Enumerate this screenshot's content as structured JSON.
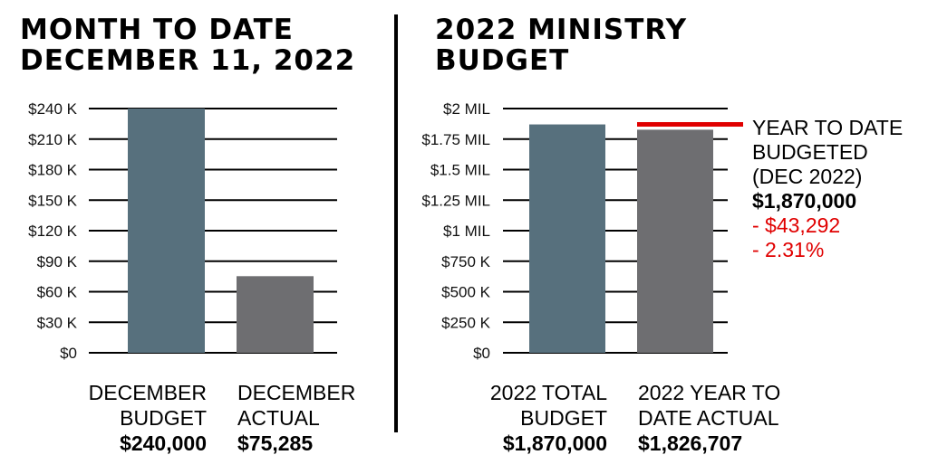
{
  "left_panel": {
    "title_line1": "MONTH TO DATE",
    "title_line2": "DECEMBER 11, 2022"
  },
  "right_panel": {
    "title_line1": "2022 MINISTRY",
    "title_line2": "BUDGET"
  },
  "annotation": {
    "line1": "YEAR TO DATE",
    "line2": "BUDGETED",
    "line3": "(DEC 2022)",
    "amount": "$1,870,000",
    "diff": "- $43,292",
    "pct": "- 2.31%",
    "marker_value": 1870000,
    "marker_color": "#e00000"
  },
  "colors": {
    "budget_bar": "#57707d",
    "actual_bar": "#6e6e71",
    "marker": "#e00000"
  },
  "chart_data": [
    {
      "type": "bar",
      "title": "MONTH TO DATE DECEMBER 11, 2022",
      "categories": [
        "DECEMBER BUDGET",
        "DECEMBER ACTUAL"
      ],
      "category_lines": [
        [
          "DECEMBER",
          "BUDGET"
        ],
        [
          "DECEMBER",
          "ACTUAL"
        ]
      ],
      "value_labels": [
        "$240,000",
        "$75,285"
      ],
      "values": [
        240000,
        75285
      ],
      "ylim": [
        0,
        240000
      ],
      "yticks": [
        0,
        30000,
        60000,
        90000,
        120000,
        150000,
        180000,
        210000,
        240000
      ],
      "ytick_labels": [
        "$0",
        "$30 K",
        "$60 K",
        "$90 K",
        "$120 K",
        "$150 K",
        "$180 K",
        "$210 K",
        "$240 K"
      ],
      "grid": true,
      "bar_colors": [
        "#57707d",
        "#6e6e71"
      ]
    },
    {
      "type": "bar",
      "title": "2022 MINISTRY BUDGET",
      "categories": [
        "2022 TOTAL BUDGET",
        "2022 YEAR TO DATE ACTUAL"
      ],
      "category_lines": [
        [
          "2022 TOTAL",
          "BUDGET"
        ],
        [
          "2022 YEAR TO",
          "DATE ACTUAL"
        ]
      ],
      "value_labels": [
        "$1,870,000",
        "$1,826,707"
      ],
      "values": [
        1870000,
        1826707
      ],
      "ylim": [
        0,
        2000000
      ],
      "yticks": [
        0,
        250000,
        500000,
        750000,
        1000000,
        1250000,
        1500000,
        1750000,
        2000000
      ],
      "ytick_labels": [
        "$0",
        "$250 K",
        "$500 K",
        "$750 K",
        "$1 MIL",
        "$1.25 MIL",
        "$1.5 MIL",
        "$1.75 MIL",
        "$2 MIL"
      ],
      "grid": true,
      "bar_colors": [
        "#57707d",
        "#6e6e71"
      ]
    }
  ]
}
